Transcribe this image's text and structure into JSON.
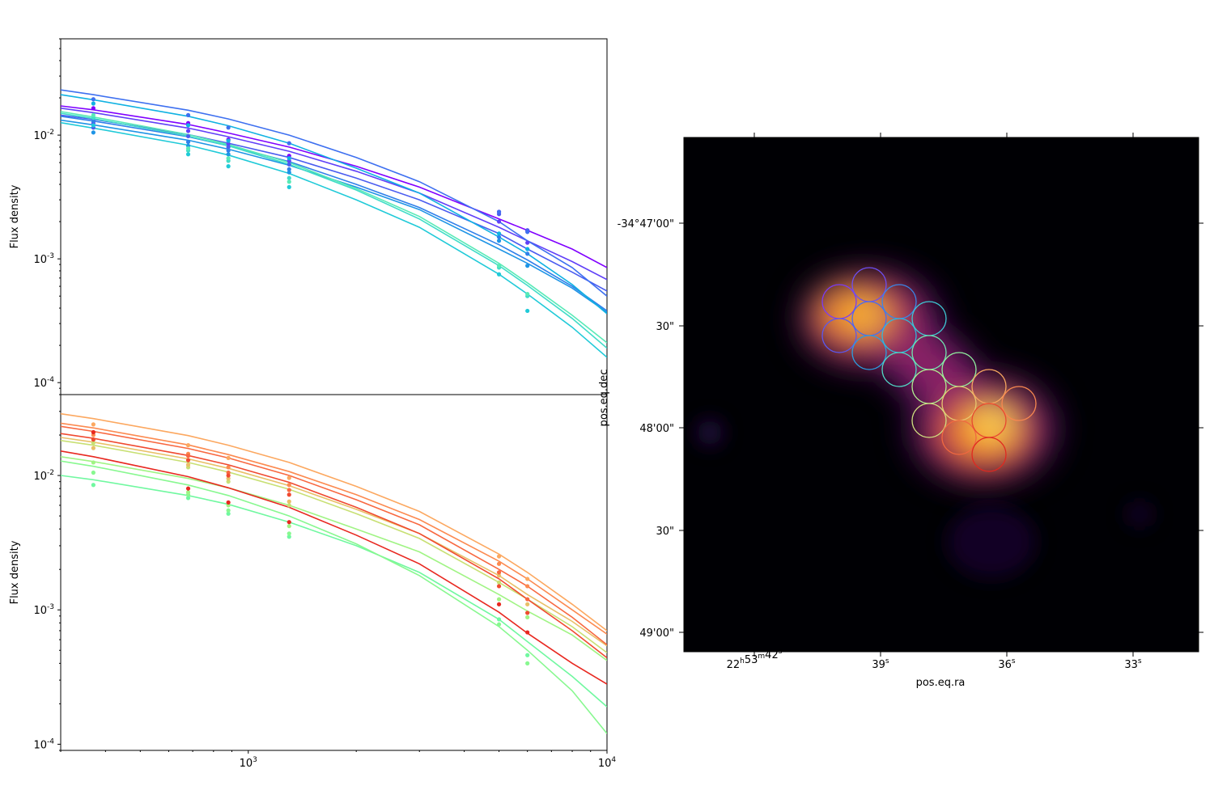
{
  "chart_data": [
    {
      "type": "line",
      "panel": "top-sed",
      "xscale": "log",
      "yscale": "log",
      "xlim": [
        300,
        10000
      ],
      "ylim": [
        8e-05,
        0.06
      ],
      "xlabel": "",
      "ylabel": "Flux density",
      "yticks": [
        {
          "value": 0.0001,
          "label": "10",
          "exp": "-4"
        },
        {
          "value": 0.001,
          "label": "10",
          "exp": "-3"
        },
        {
          "value": 0.01,
          "label": "10",
          "exp": "-2"
        }
      ],
      "x_points": [
        370,
        680,
        880,
        1300,
        5000,
        6000
      ],
      "x_curve": [
        300,
        370,
        680,
        880,
        1300,
        2000,
        3000,
        5000,
        6000,
        8000,
        10000
      ],
      "series": [
        {
          "color": "#8000ff",
          "points": [
            0.0165,
            0.0125,
            0.0092,
            0.0068,
            0.0024,
            0.0017
          ],
          "curve": [
            0.0172,
            0.016,
            0.0122,
            0.0104,
            0.008,
            0.0056,
            0.0038,
            0.0021,
            0.0017,
            0.0012,
            0.00085
          ]
        },
        {
          "color": "#6040f8",
          "points": [
            0.0125,
            0.0108,
            0.0085,
            0.0062,
            0.002,
            0.00135
          ],
          "curve": [
            0.0165,
            0.0152,
            0.0114,
            0.0097,
            0.0074,
            0.0051,
            0.0034,
            0.0018,
            0.0014,
            0.00095,
            0.00068
          ]
        },
        {
          "color": "#4a5cf0",
          "points": [
            0.0115,
            0.0098,
            0.008,
            0.0058,
            0.0023,
            0.0017
          ],
          "curve": [
            0.0145,
            0.0134,
            0.0101,
            0.0086,
            0.0066,
            0.0045,
            0.003,
            0.0016,
            0.0012,
            0.00078,
            0.00055
          ]
        },
        {
          "color": "#3e70f0",
          "points": [
            0.0195,
            0.0145,
            0.0115,
            0.0086,
            0.0024,
            0.00165
          ],
          "curve": [
            0.0232,
            0.0212,
            0.0159,
            0.0135,
            0.01,
            0.0066,
            0.0042,
            0.002,
            0.0014,
            0.00085,
            0.0005
          ]
        },
        {
          "color": "#3080ea",
          "points": [
            0.013,
            0.0088,
            0.0075,
            0.0053,
            0.0015,
            0.0011
          ],
          "curve": [
            0.0142,
            0.013,
            0.0097,
            0.0082,
            0.0061,
            0.004,
            0.0026,
            0.0013,
            0.00098,
            0.0006,
            0.00038
          ]
        },
        {
          "color": "#1e94e6",
          "points": [
            0.0105,
            0.0082,
            0.007,
            0.005,
            0.0014,
            0.00088
          ],
          "curve": [
            0.0132,
            0.0121,
            0.0091,
            0.0077,
            0.0057,
            0.0038,
            0.0025,
            0.0012,
            0.00092,
            0.00058,
            0.00037
          ]
        },
        {
          "color": "#10b2e2",
          "points": [
            0.018,
            0.012,
            0.009,
            0.0065,
            0.0016,
            0.0012
          ],
          "curve": [
            0.0212,
            0.0193,
            0.0142,
            0.0119,
            0.0086,
            0.0054,
            0.0034,
            0.0015,
            0.0011,
            0.00062,
            0.00036
          ]
        },
        {
          "color": "#20cad8",
          "points": [
            0.012,
            0.007,
            0.0056,
            0.0038,
            0.00075,
            0.00038
          ],
          "curve": [
            0.0126,
            0.0114,
            0.0083,
            0.0069,
            0.0049,
            0.003,
            0.0018,
            0.00075,
            0.00052,
            0.00028,
            0.00016
          ]
        },
        {
          "color": "#40dcc8",
          "points": [
            0.0138,
            0.0075,
            0.0062,
            0.0045,
            0.00085,
            0.0005
          ],
          "curve": [
            0.015,
            0.0136,
            0.0098,
            0.0082,
            0.0058,
            0.0036,
            0.0021,
            0.00088,
            0.00061,
            0.00033,
            0.00019
          ]
        },
        {
          "color": "#58eab6",
          "points": [
            0.0145,
            0.0078,
            0.0065,
            0.0042,
            0.00088,
            0.00052
          ],
          "curve": [
            0.0155,
            0.014,
            0.0101,
            0.0084,
            0.006,
            0.0037,
            0.0022,
            0.00092,
            0.00064,
            0.00035,
            0.00021
          ]
        }
      ]
    },
    {
      "type": "line",
      "panel": "bottom-sed",
      "xscale": "log",
      "yscale": "log",
      "xlim": [
        300,
        10000
      ],
      "ylim": [
        9e-05,
        0.04
      ],
      "xlabel": "",
      "ylabel": "Flux density",
      "xticks": [
        {
          "value": 1000,
          "label": "10",
          "exp": "3"
        },
        {
          "value": 10000,
          "label": "10",
          "exp": "4"
        }
      ],
      "yticks": [
        {
          "value": 0.0001,
          "label": "10",
          "exp": "-4"
        },
        {
          "value": 0.001,
          "label": "10",
          "exp": "-3"
        },
        {
          "value": 0.01,
          "label": "10",
          "exp": "-2"
        }
      ],
      "x_points": [
        370,
        680,
        880,
        1300,
        5000,
        6000
      ],
      "x_curve": [
        300,
        370,
        680,
        880,
        1300,
        2000,
        3000,
        5000,
        6000,
        8000,
        10000
      ],
      "series": [
        {
          "color": "#70f8a0",
          "points": [
            0.0085,
            0.0068,
            0.0052,
            0.0035,
            0.00085,
            0.00046
          ],
          "curve": [
            0.01,
            0.0093,
            0.0071,
            0.0061,
            0.0045,
            0.003,
            0.0019,
            0.00085,
            0.00058,
            0.00032,
            0.00019
          ]
        },
        {
          "color": "#88f890",
          "points": [
            0.0105,
            0.0072,
            0.0055,
            0.0037,
            0.00078,
            0.0004
          ],
          "curve": [
            0.0128,
            0.0117,
            0.0085,
            0.0071,
            0.005,
            0.0031,
            0.0018,
            0.00075,
            0.0005,
            0.00025,
            0.00012
          ]
        },
        {
          "color": "#a0f484",
          "points": [
            0.0125,
            0.0075,
            0.006,
            0.0042,
            0.0012,
            0.00088
          ],
          "curve": [
            0.0138,
            0.0127,
            0.0095,
            0.0081,
            0.006,
            0.004,
            0.0027,
            0.0013,
            0.00098,
            0.00065,
            0.00042
          ]
        },
        {
          "color": "#c8e074",
          "points": [
            0.0175,
            0.0115,
            0.009,
            0.006,
            0.0016,
            0.00095
          ],
          "curve": [
            0.0182,
            0.0168,
            0.0125,
            0.0106,
            0.0079,
            0.0052,
            0.0034,
            0.0016,
            0.0012,
            0.00075,
            0.00048
          ]
        },
        {
          "color": "#e8c068",
          "points": [
            0.016,
            0.012,
            0.0095,
            0.0064,
            0.0018,
            0.0011
          ],
          "curve": [
            0.0192,
            0.0177,
            0.0133,
            0.0113,
            0.0084,
            0.0056,
            0.0037,
            0.0018,
            0.0013,
            0.00082,
            0.00054
          ]
        },
        {
          "color": "#fca860",
          "points": [
            0.024,
            0.0168,
            0.0135,
            0.0096,
            0.0025,
            0.0017
          ],
          "curve": [
            0.0288,
            0.0265,
            0.0198,
            0.0168,
            0.0125,
            0.0083,
            0.0054,
            0.0026,
            0.0019,
            0.0011,
            0.0007
          ]
        },
        {
          "color": "#fc8a50",
          "points": [
            0.02,
            0.0145,
            0.0115,
            0.0085,
            0.0022,
            0.0015
          ],
          "curve": [
            0.0245,
            0.0226,
            0.0169,
            0.0143,
            0.0107,
            0.0072,
            0.0047,
            0.0023,
            0.0017,
            0.001,
            0.00066
          ]
        },
        {
          "color": "#f86840",
          "points": [
            0.021,
            0.014,
            0.0105,
            0.0078,
            0.0019,
            0.0012
          ],
          "curve": [
            0.0232,
            0.0213,
            0.0159,
            0.0135,
            0.01,
            0.0066,
            0.0043,
            0.002,
            0.0015,
            0.00088,
            0.00055
          ]
        },
        {
          "color": "#f04a30",
          "points": [
            0.0185,
            0.013,
            0.01,
            0.0072,
            0.0015,
            0.00095
          ],
          "curve": [
            0.0205,
            0.0189,
            0.0141,
            0.012,
            0.0089,
            0.0058,
            0.0037,
            0.0017,
            0.0012,
            0.0007,
            0.00044
          ]
        },
        {
          "color": "#e82820",
          "points": [
            0.021,
            0.008,
            0.0063,
            0.0045,
            0.0011,
            0.00068
          ],
          "curve": [
            0.0152,
            0.0138,
            0.0098,
            0.0081,
            0.0058,
            0.0036,
            0.0022,
            0.00096,
            0.00067,
            0.0004,
            0.00028
          ]
        }
      ]
    },
    {
      "type": "heatmap",
      "panel": "image",
      "xlabel": "pos.eq.ra",
      "ylabel": "pos.eq.dec",
      "colormap": "inferno",
      "xticks": [
        {
          "main": "22",
          "sup": "h",
          "main2": "53",
          "sup2": "m",
          "main3": "42",
          "sup3": "s"
        },
        {
          "main": "39",
          "sup": "s"
        },
        {
          "main": "36",
          "sup": "s"
        },
        {
          "main": "33",
          "sup": "s"
        }
      ],
      "yticks": [
        "-34°47'00\"",
        "30\"",
        "48'00\"",
        "30\"",
        "49'00\""
      ],
      "apertures": [
        {
          "color": "#7a3cf6"
        },
        {
          "color": "#6c4ef2"
        },
        {
          "color": "#5a58f0"
        },
        {
          "color": "#4a6cee"
        },
        {
          "color": "#3a86e8"
        },
        {
          "color": "#2a9ee0"
        },
        {
          "color": "#30b8dc"
        },
        {
          "color": "#3ec8d4"
        },
        {
          "color": "#50d8c4"
        },
        {
          "color": "#70e8b0"
        },
        {
          "color": "#90f0a0"
        },
        {
          "color": "#b0f090"
        },
        {
          "color": "#d0e080"
        },
        {
          "color": "#e8c870"
        },
        {
          "color": "#f8a860"
        },
        {
          "color": "#f88850"
        },
        {
          "color": "#f06840"
        },
        {
          "color": "#e84830"
        },
        {
          "color": "#e02820"
        }
      ]
    }
  ]
}
